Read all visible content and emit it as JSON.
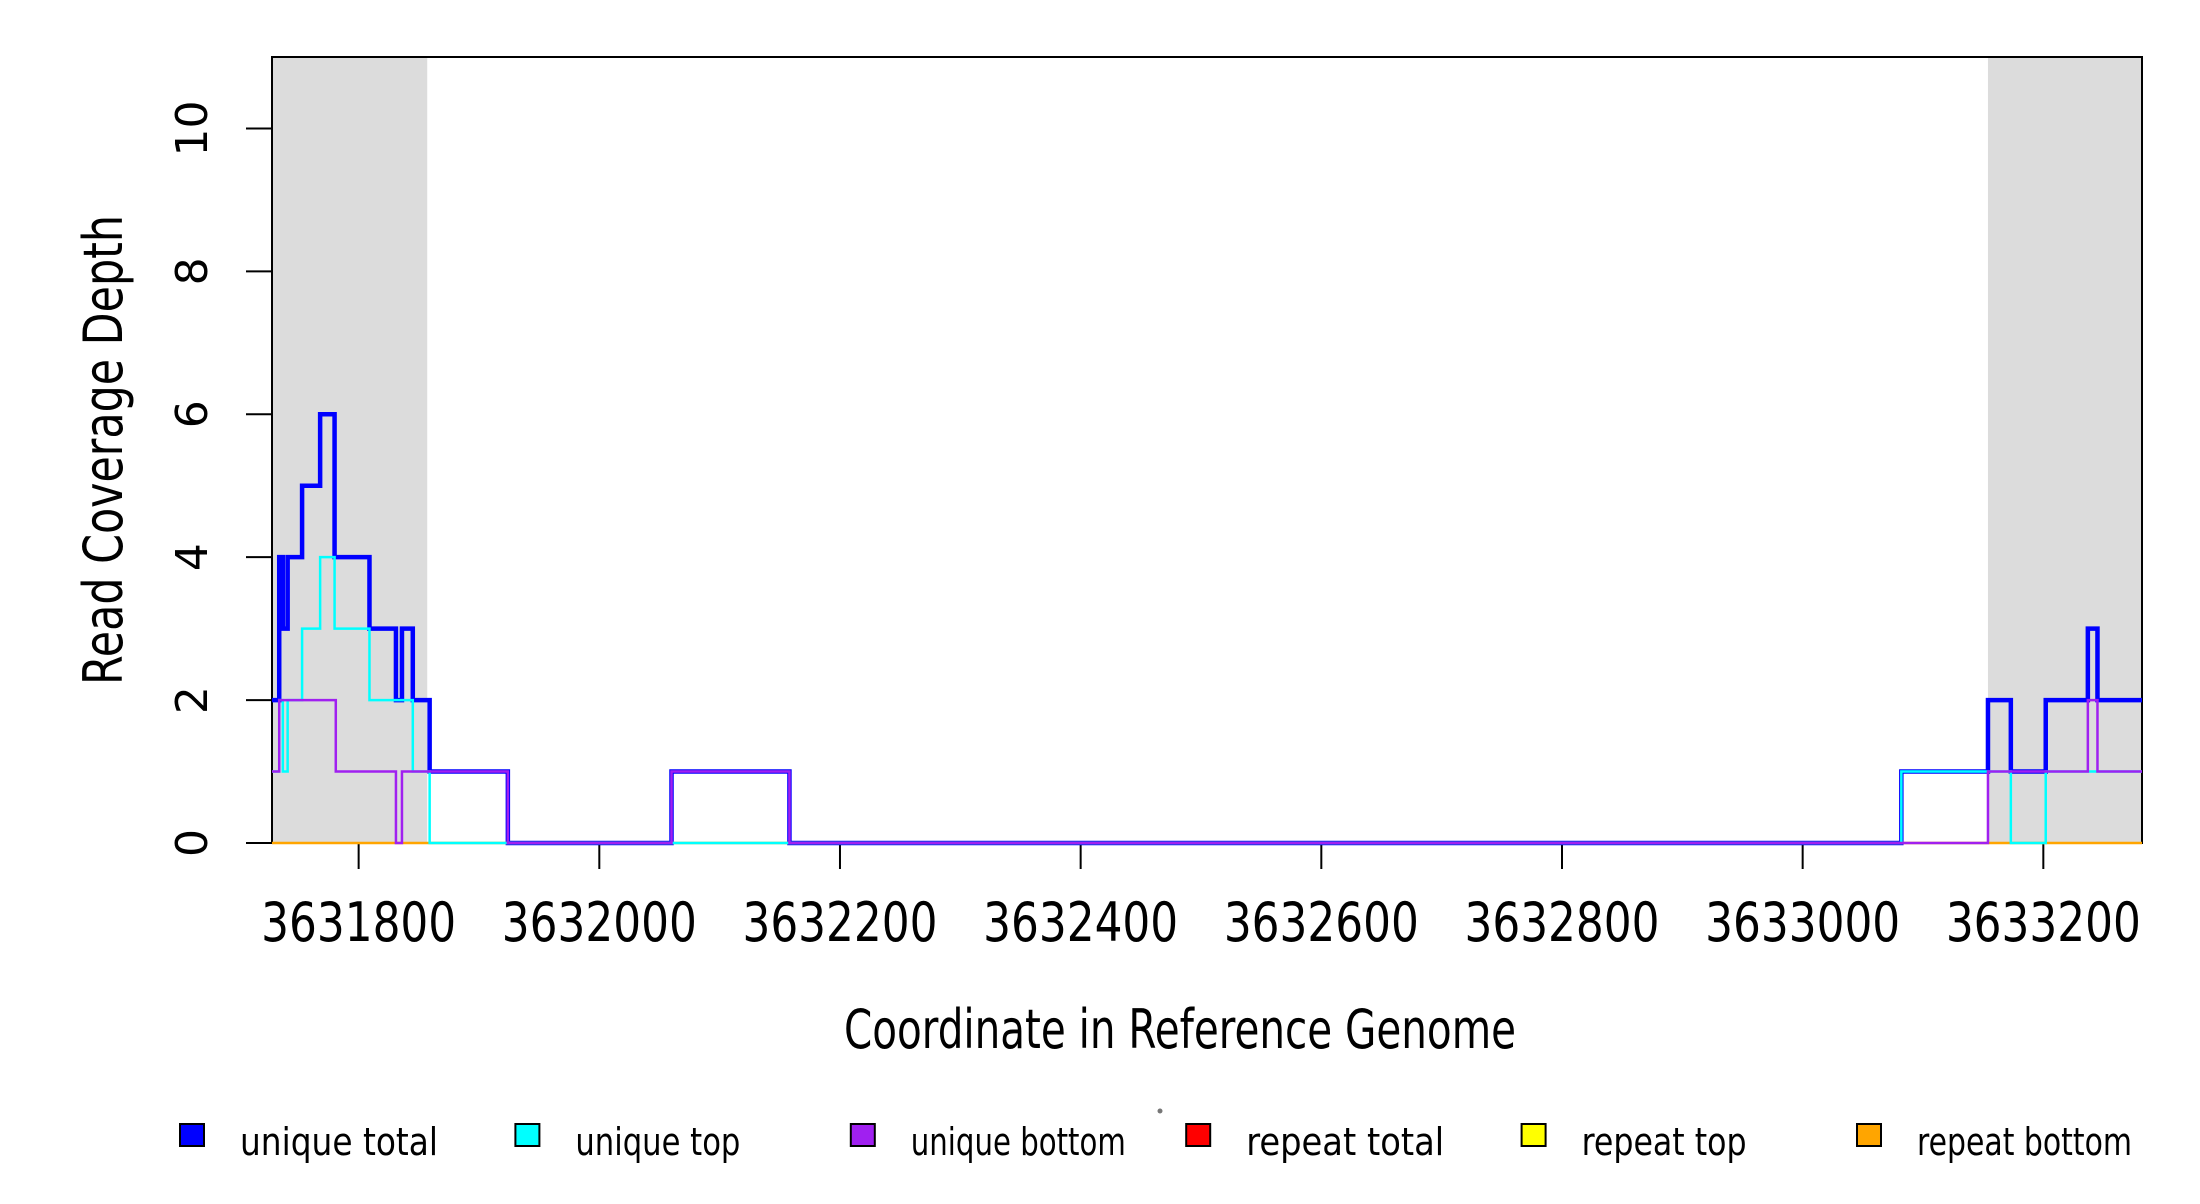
{
  "figure": {
    "background": "#ffffff",
    "plot_border_color": "#000000"
  },
  "chart_data": {
    "type": "line",
    "step": true,
    "title": "",
    "xlabel": "Coordinate in Reference Genome",
    "ylabel": "Read Coverage Depth",
    "xlim": [
      3631728,
      3633282
    ],
    "ylim": [
      0,
      11
    ],
    "grid": false,
    "x_ticks": [
      3631800,
      3632000,
      3632200,
      3632400,
      3632600,
      3632800,
      3633000,
      3633200
    ],
    "x_tick_labels": [
      "3631800",
      "3632000",
      "3632200",
      "3632400",
      "3632600",
      "3632800",
      "3633000",
      "3633200"
    ],
    "y_ticks": [
      0,
      2,
      4,
      6,
      8,
      10
    ],
    "y_tick_labels": [
      "0",
      "2",
      "4",
      "6",
      "8",
      "10"
    ],
    "shade_color": "#DCDCDC",
    "shaded_regions": [
      {
        "from": 3631728,
        "to": 3631857
      },
      {
        "from": 3633154,
        "to": 3633282
      }
    ],
    "series": [
      {
        "name": "unique total",
        "color": "#0000FF",
        "lwd": 4.5,
        "points": [
          [
            3631728,
            2
          ],
          [
            3631734,
            4
          ],
          [
            3631737,
            3
          ],
          [
            3631741,
            4
          ],
          [
            3631753,
            5
          ],
          [
            3631768,
            6
          ],
          [
            3631780,
            4
          ],
          [
            3631809,
            3
          ],
          [
            3631831,
            2
          ],
          [
            3631836,
            3
          ],
          [
            3631845,
            2
          ],
          [
            3631859,
            1
          ],
          [
            3631924,
            0
          ],
          [
            3632060,
            1
          ],
          [
            3632158,
            0
          ],
          [
            3633082,
            1
          ],
          [
            3633154,
            2
          ],
          [
            3633173,
            1
          ],
          [
            3633202,
            2
          ],
          [
            3633237,
            3
          ],
          [
            3633245,
            2
          ]
        ]
      },
      {
        "name": "repeat total",
        "color": "#FF0000",
        "lwd": 2,
        "points": [
          [
            3631728,
            0
          ]
        ]
      },
      {
        "name": "repeat top",
        "color": "#FFFF00",
        "lwd": 2,
        "points": [
          [
            3631728,
            0
          ]
        ]
      },
      {
        "name": "repeat bottom",
        "color": "#FFA500",
        "lwd": 2.5,
        "points": [
          [
            3631728,
            0
          ]
        ]
      },
      {
        "name": "unique top",
        "color": "#00FFFF",
        "lwd": 2.5,
        "points": [
          [
            3631728,
            1
          ],
          [
            3631734,
            2
          ],
          [
            3631737,
            1
          ],
          [
            3631741,
            2
          ],
          [
            3631753,
            3
          ],
          [
            3631768,
            4
          ],
          [
            3631780,
            3
          ],
          [
            3631809,
            2
          ],
          [
            3631845,
            1
          ],
          [
            3631859,
            0
          ],
          [
            3633082,
            1
          ],
          [
            3633173,
            0
          ],
          [
            3633202,
            1
          ]
        ]
      },
      {
        "name": "unique bottom",
        "color": "#A020F0",
        "lwd": 2.5,
        "points": [
          [
            3631728,
            1
          ],
          [
            3631734,
            2
          ],
          [
            3631781,
            1
          ],
          [
            3631831,
            0
          ],
          [
            3631836,
            1
          ],
          [
            3631924,
            0
          ],
          [
            3632060,
            1
          ],
          [
            3632158,
            0
          ],
          [
            3633154,
            1
          ],
          [
            3633237,
            2
          ],
          [
            3633245,
            1
          ]
        ]
      }
    ],
    "legend": {
      "position": "bottom",
      "items": [
        {
          "label": "unique total",
          "color": "#0000FF"
        },
        {
          "label": "unique top",
          "color": "#00FFFF"
        },
        {
          "label": "unique bottom",
          "color": "#A020F0"
        },
        {
          "label": "repeat total",
          "color": "#FF0000"
        },
        {
          "label": "repeat top",
          "color": "#FFFF00"
        },
        {
          "label": "repeat bottom",
          "color": "#FFA500"
        }
      ]
    }
  }
}
